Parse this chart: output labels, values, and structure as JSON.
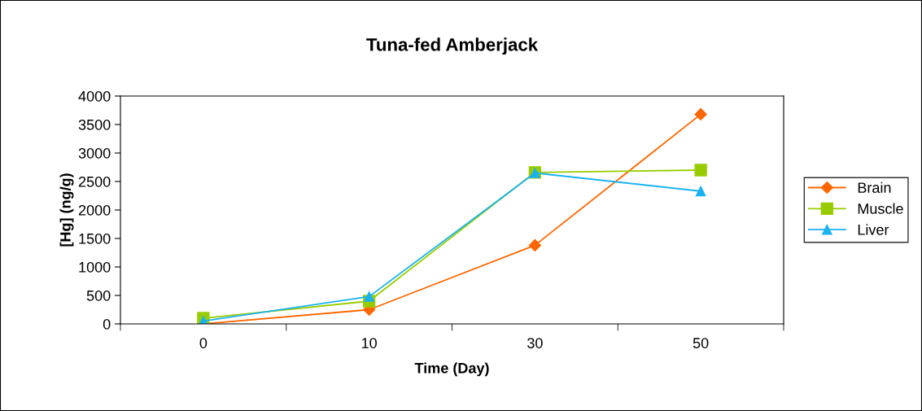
{
  "chart_data": {
    "type": "line",
    "title": "Tuna-fed Amberjack",
    "xlabel": "Time (Day)",
    "ylabel": "[Hg] (ng/g)",
    "categories": [
      "0",
      "10",
      "30",
      "50"
    ],
    "ylim": [
      0,
      4000
    ],
    "yticks": [
      0,
      500,
      1000,
      1500,
      2000,
      2500,
      3000,
      3500,
      4000
    ],
    "grid": false,
    "legend": "right",
    "line_style": "solid",
    "series": [
      {
        "name": "Brain",
        "color": "#ff6600",
        "marker": "diamond",
        "values": [
          0,
          250,
          1380,
          3680
        ]
      },
      {
        "name": "Muscle",
        "color": "#99cc00",
        "marker": "square",
        "values": [
          100,
          400,
          2660,
          2700
        ]
      },
      {
        "name": "Liver",
        "color": "#1ab2f0",
        "marker": "triangle",
        "values": [
          50,
          480,
          2650,
          2330
        ]
      }
    ]
  }
}
